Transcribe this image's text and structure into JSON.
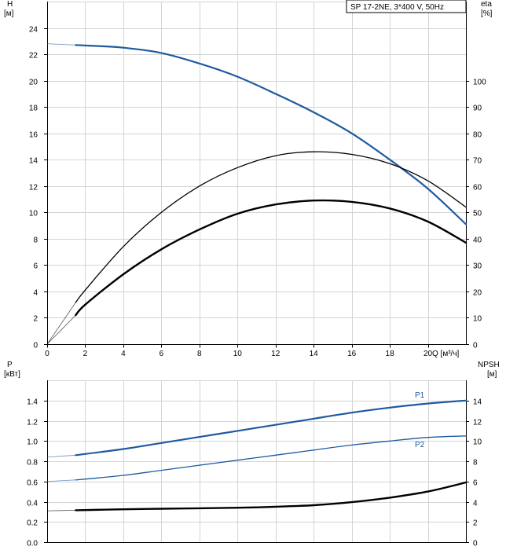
{
  "chart_data": [
    {
      "type": "line",
      "title": "SP 17-2NE, 3*400 V, 50Hz",
      "xlabel": "Q [м³/ч]",
      "ylabel_left": "H",
      "ylabel_left_unit": "[м]",
      "ylabel_right": "eta",
      "ylabel_right_unit": "[%]",
      "xlim": [
        0,
        22
      ],
      "ylim_left": [
        0,
        26
      ],
      "ylim_right": [
        0,
        130
      ],
      "x_ticks": [
        0,
        2,
        4,
        6,
        8,
        10,
        12,
        14,
        16,
        18,
        20
      ],
      "y_ticks_left": [
        0,
        2,
        4,
        6,
        8,
        10,
        12,
        14,
        16,
        18,
        20,
        22,
        24
      ],
      "y_ticks_right": [
        0,
        10,
        20,
        30,
        40,
        50,
        60,
        70,
        80,
        90,
        100
      ],
      "x_tick_labels": [
        "0",
        "2",
        "4",
        "6",
        "8",
        "10",
        "12",
        "14",
        "16",
        "18",
        "20"
      ],
      "y_tick_labels_left": [
        "0",
        "2",
        "4",
        "6",
        "8",
        "10",
        "12",
        "14",
        "16",
        "18",
        "20",
        "22",
        "24"
      ],
      "y_tick_labels_right": [
        "0",
        "10",
        "20",
        "30",
        "40",
        "50",
        "60",
        "70",
        "80",
        "90",
        "100"
      ],
      "grid": true,
      "series": [
        {
          "axis": "left",
          "color": "#1f5aa0",
          "extension": {
            "x": [
              0,
              1.5
            ],
            "y": [
              22.8,
              22.7
            ]
          },
          "x": [
            1.5,
            3,
            4,
            6,
            8,
            10,
            12,
            14,
            16,
            18,
            20,
            22
          ],
          "y": [
            22.7,
            22.6,
            22.5,
            22.1,
            21.3,
            20.3,
            19.0,
            17.6,
            16.0,
            14.0,
            11.8,
            9.1
          ]
        },
        {
          "axis": "right",
          "color": "#000000",
          "extension": {
            "x": [
              0,
              1.5
            ],
            "y": [
              0,
              15.8
            ]
          },
          "x": [
            1.5,
            2,
            4,
            6,
            8,
            10,
            12,
            14,
            16,
            18,
            20,
            22
          ],
          "y": [
            15.8,
            20.5,
            37.0,
            50.0,
            60.0,
            67.0,
            71.5,
            73.0,
            72.0,
            68.5,
            62.0,
            52.0
          ]
        },
        {
          "axis": "left",
          "color": "#000000",
          "extension": {
            "x": [
              0,
              1.5
            ],
            "y": [
              0,
              2.2
            ]
          },
          "x": [
            1.5,
            2,
            4,
            6,
            8,
            10,
            12,
            14,
            16,
            18,
            20,
            22
          ],
          "y": [
            2.2,
            3.0,
            5.3,
            7.2,
            8.7,
            9.9,
            10.6,
            10.9,
            10.8,
            10.3,
            9.3,
            7.7
          ]
        }
      ]
    },
    {
      "type": "line",
      "xlabel": "",
      "ylabel_left": "P",
      "ylabel_left_unit": "[кВт]",
      "ylabel_right": "NPSH",
      "ylabel_right_unit": "[м]",
      "xlim": [
        0,
        22
      ],
      "ylim_left": [
        0,
        1.6
      ],
      "ylim_right": [
        0,
        16
      ],
      "y_ticks_left": [
        0.0,
        0.2,
        0.4,
        0.6,
        0.8,
        1.0,
        1.2,
        1.4
      ],
      "y_ticks_right": [
        0,
        2,
        4,
        6,
        8,
        10,
        12,
        14
      ],
      "y_tick_labels_left": [
        "0.0",
        "0.2",
        "0.4",
        "0.6",
        "0.8",
        "1.0",
        "1.2",
        "1.4"
      ],
      "y_tick_labels_right": [
        "0",
        "2",
        "4",
        "6",
        "8",
        "10",
        "12",
        "14"
      ],
      "grid": true,
      "series": [
        {
          "name": "P1",
          "axis": "left",
          "color": "#1f5aa0",
          "extension": {
            "x": [
              0,
              1.5
            ],
            "y": [
              0.84,
              0.86
            ]
          },
          "x": [
            1.5,
            4,
            6,
            8,
            10,
            12,
            14,
            16,
            18,
            20,
            22
          ],
          "y": [
            0.86,
            0.92,
            0.98,
            1.04,
            1.1,
            1.16,
            1.22,
            1.28,
            1.33,
            1.37,
            1.4
          ]
        },
        {
          "name": "P2",
          "axis": "left",
          "color": "#1f5aa0",
          "extension": {
            "x": [
              0,
              1.5
            ],
            "y": [
              0.6,
              0.615
            ]
          },
          "x": [
            1.5,
            4,
            6,
            8,
            10,
            12,
            14,
            16,
            18,
            20,
            22
          ],
          "y": [
            0.615,
            0.66,
            0.71,
            0.76,
            0.81,
            0.86,
            0.91,
            0.96,
            1.0,
            1.035,
            1.05
          ]
        },
        {
          "axis": "right",
          "color": "#000000",
          "extension": {
            "x": [
              0,
              1.5
            ],
            "y": [
              3.1,
              3.15
            ]
          },
          "x": [
            1.5,
            4,
            6,
            8,
            10,
            12,
            14,
            16,
            18,
            20,
            22
          ],
          "y": [
            3.15,
            3.25,
            3.3,
            3.35,
            3.4,
            3.5,
            3.65,
            3.95,
            4.4,
            5.0,
            5.9
          ]
        }
      ]
    }
  ]
}
